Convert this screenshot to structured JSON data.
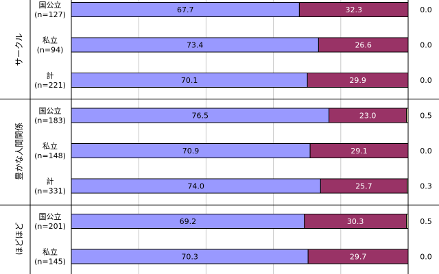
{
  "chart_data": {
    "type": "bar",
    "orientation": "horizontal",
    "stacked": true,
    "xlim": [
      0,
      100
    ],
    "grid": true,
    "groups": [
      {
        "label": "サークル",
        "rows": [
          {
            "cat": "国公立",
            "n": "(n=127)",
            "values": [
              67.7,
              32.3,
              0.0
            ],
            "labels": [
              "67.7",
              "32.3",
              "0.0"
            ]
          },
          {
            "cat": "私立",
            "n": "(n=94)",
            "values": [
              73.4,
              26.6,
              0.0
            ],
            "labels": [
              "73.4",
              "26.6",
              "0.0"
            ]
          },
          {
            "cat": "計",
            "n": "(n=221)",
            "values": [
              70.1,
              29.9,
              0.0
            ],
            "labels": [
              "70.1",
              "29.9",
              "0.0"
            ]
          }
        ]
      },
      {
        "label": "豊かな人間関係",
        "rows": [
          {
            "cat": "国公立",
            "n": "(n=183)",
            "values": [
              76.5,
              23.0,
              0.5
            ],
            "labels": [
              "76.5",
              "23.0",
              "0.5"
            ]
          },
          {
            "cat": "私立",
            "n": "(n=148)",
            "values": [
              70.9,
              29.1,
              0.0
            ],
            "labels": [
              "70.9",
              "29.1",
              "0.0"
            ]
          },
          {
            "cat": "計",
            "n": "(n=331)",
            "values": [
              74.0,
              25.7,
              0.3
            ],
            "labels": [
              "74.0",
              "25.7",
              "0.3"
            ]
          }
        ]
      },
      {
        "label": "ほどほど",
        "rows": [
          {
            "cat": "国公立",
            "n": "(n=201)",
            "values": [
              69.2,
              30.3,
              0.5
            ],
            "labels": [
              "69.2",
              "30.3",
              "0.5"
            ]
          },
          {
            "cat": "私立",
            "n": "(n=145)",
            "values": [
              70.3,
              29.7,
              0.0
            ],
            "labels": [
              "70.3",
              "29.7",
              "0.0"
            ]
          }
        ]
      }
    ],
    "colors": [
      "#9999ff",
      "#993366",
      "#ffffcc"
    ]
  }
}
